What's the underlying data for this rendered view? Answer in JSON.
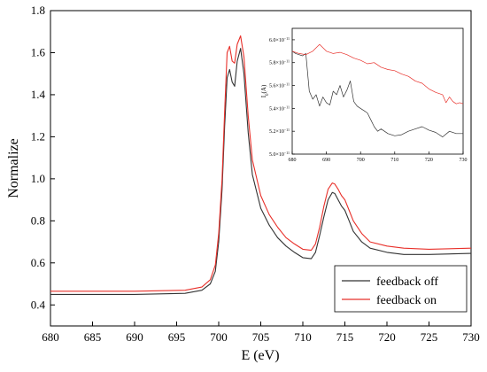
{
  "chart_data": [
    {
      "type": "line",
      "xlabel": "E (eV)",
      "ylabel": "Normalize",
      "xlim": [
        680,
        730
      ],
      "ylim": [
        0.3,
        1.8
      ],
      "xticks": [
        680,
        685,
        690,
        695,
        700,
        705,
        710,
        715,
        720,
        725,
        730
      ],
      "yticks": [
        0.4,
        0.6,
        0.8,
        1.0,
        1.2,
        1.4,
        1.6,
        1.8
      ],
      "xtick_labels": [
        "680",
        "685",
        "690",
        "695",
        "700",
        "705",
        "710",
        "715",
        "720",
        "725",
        "730"
      ],
      "ytick_labels": [
        "0.4",
        "0.6",
        "0.8",
        "1.0",
        "1.2",
        "1.4",
        "1.6",
        "1.8"
      ],
      "grid": false,
      "legend_position": "bottom-right",
      "series": [
        {
          "name": "feedback off",
          "color": "#333333",
          "x": [
            680,
            690,
            696,
            698,
            699,
            699.6,
            700,
            700.4,
            700.7,
            701,
            701.3,
            701.6,
            701.9,
            702.2,
            702.6,
            703,
            703.5,
            704,
            705,
            706,
            707,
            708,
            709,
            710,
            711,
            711.5,
            712,
            712.5,
            713,
            713.5,
            713.8,
            714.2,
            714.6,
            715,
            715.5,
            716,
            717,
            718,
            720,
            722,
            725,
            730
          ],
          "y": [
            0.45,
            0.45,
            0.455,
            0.47,
            0.5,
            0.56,
            0.7,
            0.95,
            1.25,
            1.48,
            1.52,
            1.46,
            1.44,
            1.56,
            1.62,
            1.5,
            1.22,
            1.02,
            0.86,
            0.78,
            0.72,
            0.68,
            0.65,
            0.625,
            0.62,
            0.65,
            0.73,
            0.82,
            0.9,
            0.935,
            0.93,
            0.9,
            0.87,
            0.85,
            0.8,
            0.75,
            0.7,
            0.67,
            0.65,
            0.64,
            0.64,
            0.645
          ]
        },
        {
          "name": "feedback on",
          "color": "#e8302a",
          "x": [
            680,
            690,
            696,
            698,
            699,
            699.6,
            700,
            700.4,
            700.7,
            701,
            701.3,
            701.6,
            701.9,
            702.2,
            702.6,
            703,
            703.5,
            704,
            705,
            706,
            707,
            708,
            709,
            710,
            711,
            711.5,
            712,
            712.5,
            713,
            713.5,
            713.8,
            714.2,
            714.6,
            715,
            715.5,
            716,
            717,
            718,
            720,
            722,
            725,
            730
          ],
          "y": [
            0.465,
            0.465,
            0.47,
            0.485,
            0.52,
            0.59,
            0.74,
            1.0,
            1.32,
            1.6,
            1.63,
            1.56,
            1.55,
            1.64,
            1.68,
            1.58,
            1.3,
            1.09,
            0.92,
            0.83,
            0.77,
            0.72,
            0.69,
            0.665,
            0.66,
            0.69,
            0.77,
            0.87,
            0.95,
            0.98,
            0.975,
            0.95,
            0.92,
            0.9,
            0.85,
            0.8,
            0.74,
            0.7,
            0.68,
            0.67,
            0.665,
            0.67
          ]
        }
      ]
    },
    {
      "type": "line",
      "inset": true,
      "xlabel": "",
      "ylabel": "I",
      "ylabel_sub": "0",
      "ylabel_unit": "(A)",
      "xlim": [
        680,
        730
      ],
      "ylim": [
        5e-11,
        6.1e-11
      ],
      "xticks": [
        680,
        690,
        700,
        710,
        720,
        730
      ],
      "xtick_labels": [
        "680",
        "690",
        "700",
        "710",
        "720",
        "730"
      ],
      "yticks": [
        5e-11,
        5.2e-11,
        5.4e-11,
        5.6e-11,
        5.8e-11,
        6e-11
      ],
      "ytick_mantissas": [
        "5.0",
        "5.2",
        "5.4",
        "5.6",
        "5.8",
        "6.0"
      ],
      "ytick_times": "×10",
      "ytick_exponent": "−11",
      "grid": false,
      "series": [
        {
          "name": "feedback off",
          "color": "#333333",
          "x": [
            680,
            681,
            682,
            683,
            684,
            685,
            686,
            687,
            688,
            689,
            690,
            691,
            692,
            693,
            694,
            695,
            696,
            697,
            698,
            699,
            700,
            701,
            702,
            703,
            704,
            705,
            706,
            708,
            710,
            712,
            714,
            716,
            718,
            720,
            722,
            724,
            726,
            728,
            730
          ],
          "y": [
            5.9e-11,
            5.88e-11,
            5.87e-11,
            5.86e-11,
            5.88e-11,
            5.55e-11,
            5.48e-11,
            5.52e-11,
            5.42e-11,
            5.5e-11,
            5.45e-11,
            5.43e-11,
            5.55e-11,
            5.52e-11,
            5.6e-11,
            5.5e-11,
            5.56e-11,
            5.64e-11,
            5.46e-11,
            5.42e-11,
            5.4e-11,
            5.38e-11,
            5.36e-11,
            5.3e-11,
            5.24e-11,
            5.2e-11,
            5.22e-11,
            5.18e-11,
            5.16e-11,
            5.17e-11,
            5.2e-11,
            5.22e-11,
            5.24e-11,
            5.21e-11,
            5.19e-11,
            5.15e-11,
            5.2e-11,
            5.18e-11,
            5.18e-11
          ]
        },
        {
          "name": "feedback on",
          "color": "#e8302a",
          "x": [
            680,
            682,
            684,
            686,
            688,
            690,
            692,
            694,
            696,
            698,
            700,
            702,
            704,
            706,
            708,
            710,
            712,
            714,
            716,
            718,
            720,
            722,
            724,
            725,
            726,
            727,
            728,
            729,
            730
          ],
          "y": [
            5.9e-11,
            5.88e-11,
            5.87e-11,
            5.9e-11,
            5.96e-11,
            5.9e-11,
            5.88e-11,
            5.89e-11,
            5.87e-11,
            5.84e-11,
            5.82e-11,
            5.79e-11,
            5.8e-11,
            5.76e-11,
            5.74e-11,
            5.73e-11,
            5.7e-11,
            5.68e-11,
            5.64e-11,
            5.62e-11,
            5.57e-11,
            5.54e-11,
            5.52e-11,
            5.45e-11,
            5.5e-11,
            5.46e-11,
            5.44e-11,
            5.45e-11,
            5.44e-11
          ]
        }
      ]
    }
  ]
}
